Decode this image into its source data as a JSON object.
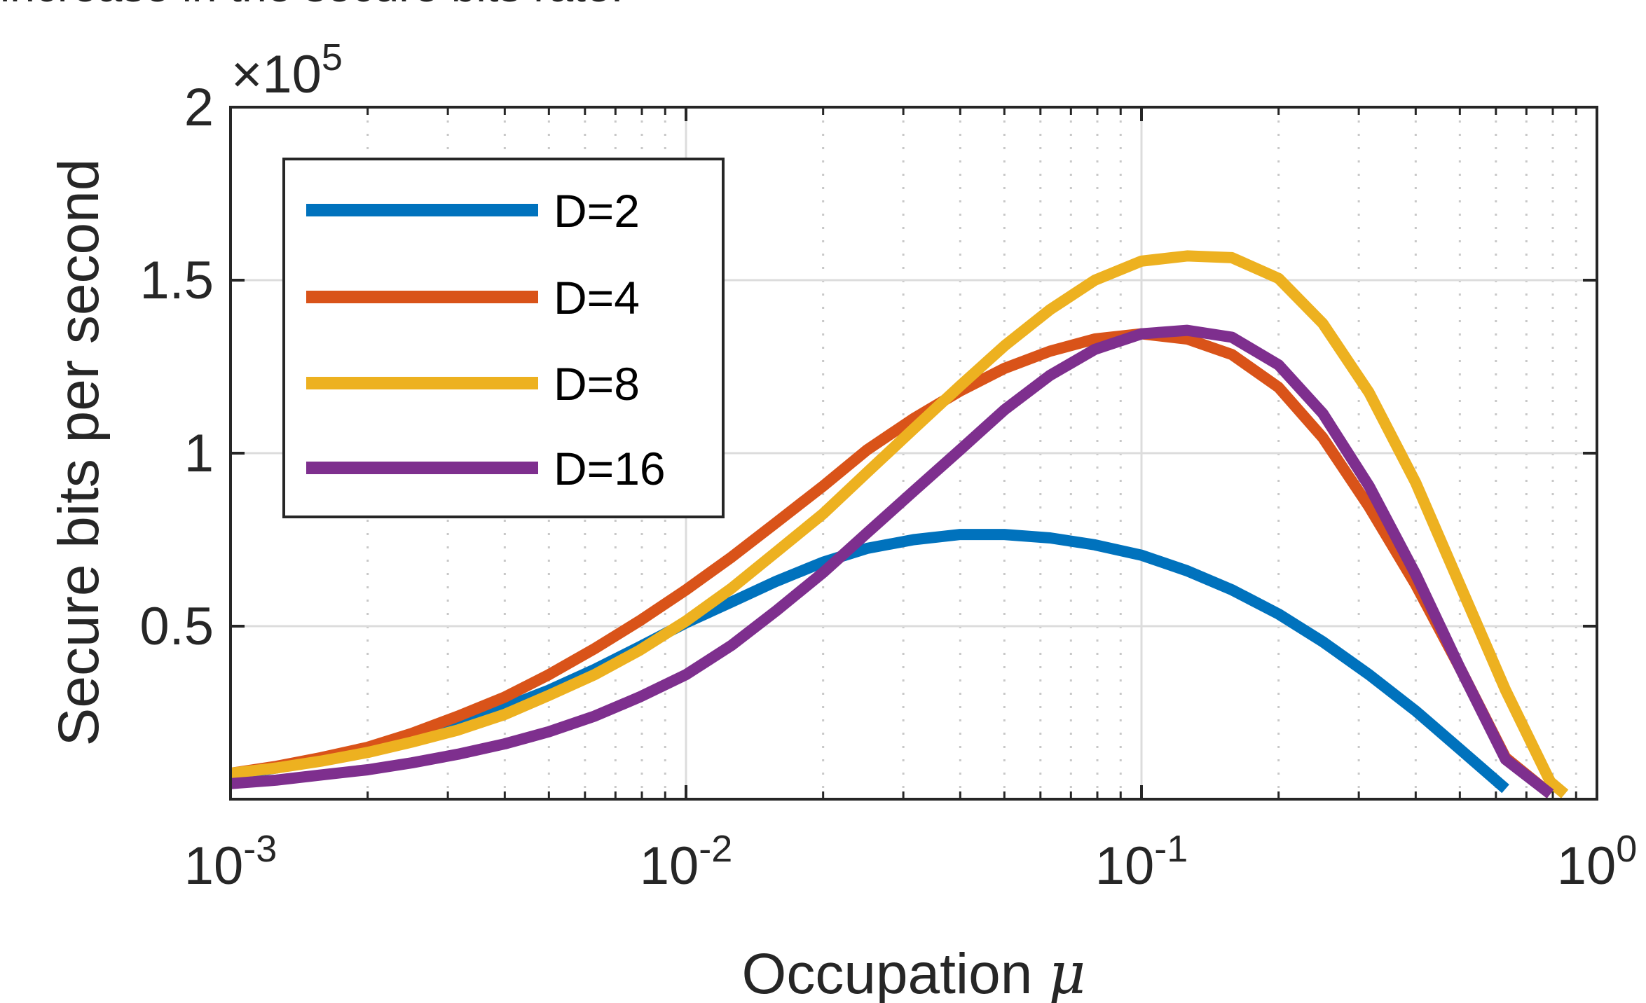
{
  "caption_fragment": "increase in the secure bits rate.",
  "chart_data": {
    "type": "line",
    "title": "",
    "xlabel": "Occupation",
    "xlabel_symbol": "μ",
    "ylabel": "Secure bits per second",
    "xscale": "log",
    "yscale": "linear",
    "xlim": [
      0.001,
      1
    ],
    "ylim": [
      0,
      200000
    ],
    "y_multiplier_label": "×10",
    "y_multiplier_exponent": "5",
    "x_ticks": [
      {
        "value": 0.001,
        "base": "10",
        "exp": "-3"
      },
      {
        "value": 0.01,
        "base": "10",
        "exp": "-2"
      },
      {
        "value": 0.1,
        "base": "10",
        "exp": "-1"
      },
      {
        "value": 1,
        "base": "10",
        "exp": "0"
      }
    ],
    "y_ticks": [
      {
        "value": 50000,
        "label": "0.5"
      },
      {
        "value": 100000,
        "label": "1"
      },
      {
        "value": 150000,
        "label": "1.5"
      },
      {
        "value": 200000,
        "label": "2"
      }
    ],
    "grid": "on (major and minor)",
    "legend_position": "top-left",
    "series": [
      {
        "name": "D=2",
        "color": "#0072BD",
        "x": [
          0.001,
          0.00126,
          0.00158,
          0.002,
          0.0025,
          0.00316,
          0.004,
          0.005,
          0.0063,
          0.0079,
          0.01,
          0.0126,
          0.0158,
          0.02,
          0.025,
          0.0316,
          0.04,
          0.05,
          0.063,
          0.079,
          0.1,
          0.126,
          0.158,
          0.2,
          0.25,
          0.316,
          0.4,
          0.5,
          0.63
        ],
        "y": [
          7000,
          9000,
          11500,
          14500,
          18000,
          22000,
          26500,
          31500,
          37500,
          44000,
          51000,
          57000,
          63000,
          68500,
          72500,
          75000,
          76500,
          76500,
          75500,
          73500,
          70500,
          66000,
          60500,
          53500,
          45500,
          36000,
          25500,
          14500,
          3000
        ]
      },
      {
        "name": "D=4",
        "color": "#D95319",
        "x": [
          0.001,
          0.00126,
          0.00158,
          0.002,
          0.0025,
          0.00316,
          0.004,
          0.005,
          0.0063,
          0.0079,
          0.01,
          0.0126,
          0.0158,
          0.02,
          0.025,
          0.0316,
          0.04,
          0.05,
          0.063,
          0.079,
          0.1,
          0.126,
          0.158,
          0.2,
          0.25,
          0.316,
          0.4,
          0.5,
          0.63,
          0.79
        ],
        "y": [
          7500,
          9500,
          12000,
          15000,
          19000,
          24000,
          29500,
          36000,
          43500,
          51500,
          60500,
          70000,
          80000,
          90500,
          101000,
          110000,
          118000,
          124500,
          129500,
          133000,
          134500,
          133000,
          128500,
          119000,
          104500,
          84500,
          62000,
          38000,
          12000,
          1500
        ]
      },
      {
        "name": "D=8",
        "color": "#EDB120",
        "x": [
          0.001,
          0.00126,
          0.00158,
          0.002,
          0.0025,
          0.00316,
          0.004,
          0.005,
          0.0063,
          0.0079,
          0.01,
          0.0126,
          0.0158,
          0.02,
          0.025,
          0.0316,
          0.04,
          0.05,
          0.063,
          0.079,
          0.1,
          0.126,
          0.158,
          0.2,
          0.25,
          0.316,
          0.4,
          0.5,
          0.63,
          0.79,
          0.85
        ],
        "y": [
          7500,
          9000,
          11000,
          13500,
          16500,
          20000,
          24500,
          30000,
          36000,
          43000,
          51500,
          61000,
          71500,
          82500,
          94500,
          107000,
          119500,
          131000,
          141500,
          150000,
          155500,
          157000,
          156500,
          150500,
          137500,
          117500,
          91500,
          62000,
          31500,
          5000,
          1500
        ]
      },
      {
        "name": "D=16",
        "color": "#7E2F8E",
        "x": [
          0.001,
          0.00126,
          0.00158,
          0.002,
          0.0025,
          0.00316,
          0.004,
          0.005,
          0.0063,
          0.0079,
          0.01,
          0.0126,
          0.0158,
          0.02,
          0.025,
          0.0316,
          0.04,
          0.05,
          0.063,
          0.079,
          0.1,
          0.126,
          0.158,
          0.2,
          0.25,
          0.316,
          0.4,
          0.5,
          0.63,
          0.79
        ],
        "y": [
          4500,
          5500,
          7000,
          8500,
          10500,
          13000,
          16000,
          19500,
          24000,
          29500,
          36000,
          44500,
          54500,
          65500,
          77000,
          89000,
          101000,
          112500,
          122500,
          130000,
          134500,
          135500,
          133500,
          125500,
          111500,
          90500,
          65000,
          38000,
          11500,
          1500
        ]
      }
    ]
  }
}
